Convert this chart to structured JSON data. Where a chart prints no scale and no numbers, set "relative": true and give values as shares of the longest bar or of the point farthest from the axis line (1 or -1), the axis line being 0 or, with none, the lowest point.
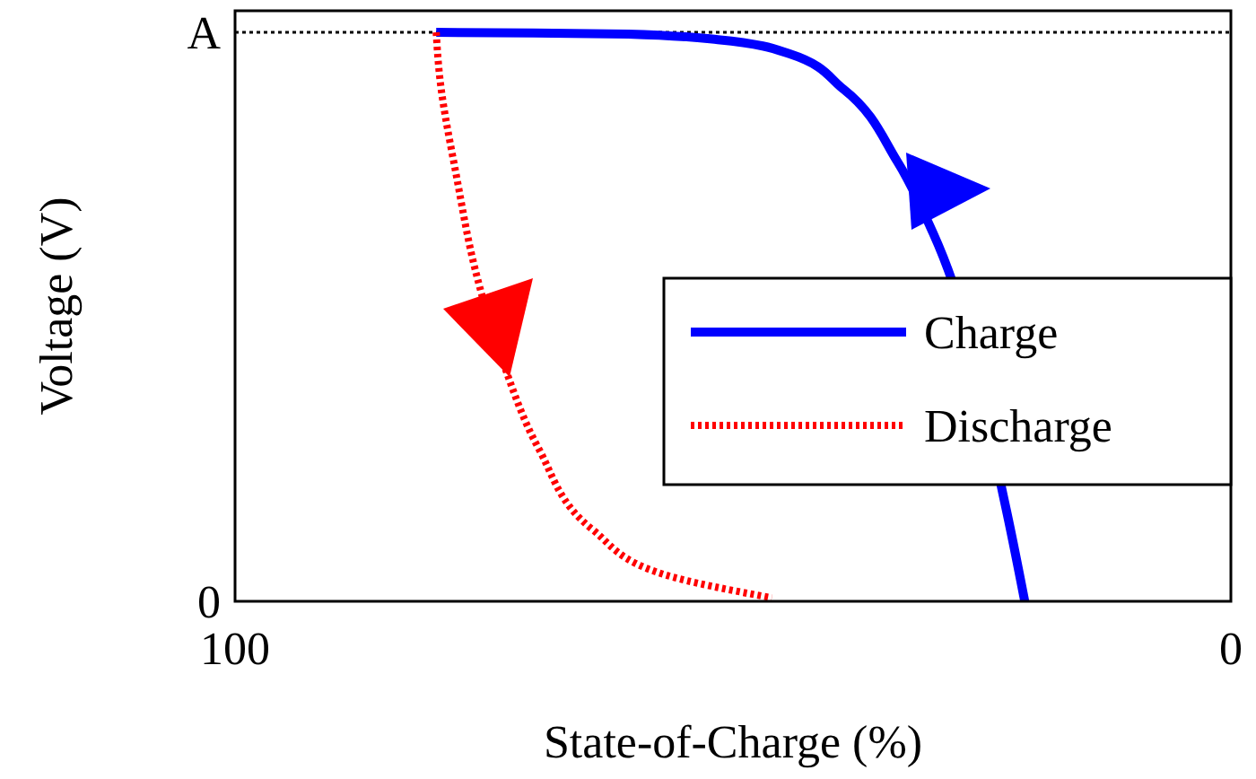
{
  "chart_data": {
    "type": "line",
    "xlabel": "State-of-Charge (%)",
    "ylabel": "Voltage (V)",
    "xlim": [
      100,
      0
    ],
    "xticks": [
      100,
      0
    ],
    "relative": true,
    "legend": "right",
    "annotations": [
      "0"
    ],
    "ref_lines": [
      {
        "axis": "y",
        "value": 1,
        "label": "A",
        "line_style": "dotted",
        "color": "#000000"
      }
    ],
    "series": [
      {
        "name": "Charge",
        "color": "#0000ff",
        "line_style": "solid",
        "x": [
          79.8,
          70,
          60.5,
          51.5,
          44.3,
          38.9,
          33.5,
          29.9,
          27.2,
          24.9,
          22.7,
          20.7
        ],
        "values": [
          1,
          0.999,
          0.997,
          0.987,
          0.962,
          0.9,
          0.773,
          0.647,
          null,
          null,
          0.173,
          0
        ]
      },
      {
        "name": "Discharge",
        "color": "#ff0000",
        "line_style": "dotted",
        "x": [
          79.8,
          79.5,
          77.7,
          75.9,
          73.2,
          69.5,
          64.1,
          56.9,
          46.1
        ],
        "values": [
          1,
          0.93,
          0.741,
          0.584,
          0.426,
          0.268,
          0.126,
          0.047,
          0.006
        ]
      }
    ]
  }
}
